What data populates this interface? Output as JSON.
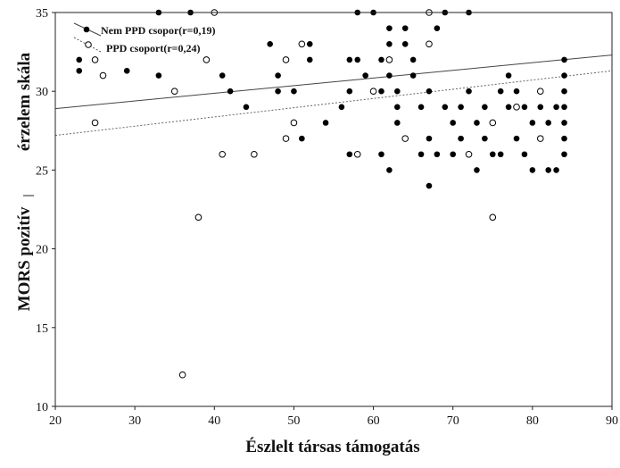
{
  "chart_data": {
    "type": "scatter",
    "xlabel": "Észlelt társas támogatás",
    "ylabel_parts": [
      "MORS pozitív",
      "érzelem skála"
    ],
    "xlim": [
      20,
      90
    ],
    "ylim": [
      10,
      35
    ],
    "x_ticks": [
      "20",
      "30",
      "40",
      "50",
      "60",
      "70",
      "80",
      "90"
    ],
    "y_ticks": [
      "10",
      "15",
      "20",
      "25",
      "30",
      "35"
    ],
    "legend": [
      "Nem PPD  csopor(r=0,19)",
      "PPD csoport(r=0,24)"
    ],
    "series": [
      {
        "name": "Nem PPD  csopor(r=0,19)",
        "marker": "filled",
        "color": "#000000",
        "fit": [
          [
            20,
            28.9
          ],
          [
            90,
            32.3
          ]
        ],
        "points": [
          [
            23,
            31.3
          ],
          [
            23,
            32
          ],
          [
            29,
            31.3
          ],
          [
            33,
            35
          ],
          [
            33,
            31
          ],
          [
            37,
            35
          ],
          [
            41,
            31
          ],
          [
            42,
            30
          ],
          [
            44,
            29
          ],
          [
            47,
            33
          ],
          [
            48,
            31
          ],
          [
            48,
            30
          ],
          [
            50,
            30
          ],
          [
            51,
            27
          ],
          [
            52,
            32
          ],
          [
            52,
            33
          ],
          [
            54,
            28
          ],
          [
            56,
            29
          ],
          [
            57,
            32
          ],
          [
            57,
            30
          ],
          [
            58,
            32
          ],
          [
            59,
            31
          ],
          [
            57,
            26
          ],
          [
            58,
            35
          ],
          [
            60,
            35
          ],
          [
            61,
            26
          ],
          [
            62,
            25
          ],
          [
            61,
            30
          ],
          [
            61,
            32
          ],
          [
            62,
            31
          ],
          [
            63,
            28
          ],
          [
            63,
            29
          ],
          [
            64,
            33
          ],
          [
            64,
            34
          ],
          [
            65,
            31
          ],
          [
            66,
            26
          ],
          [
            67,
            24
          ],
          [
            67,
            30
          ],
          [
            68,
            26
          ],
          [
            68,
            34
          ],
          [
            69,
            35
          ],
          [
            70,
            26
          ],
          [
            71,
            27
          ],
          [
            72,
            35
          ],
          [
            73,
            25
          ],
          [
            74,
            27
          ],
          [
            75,
            26
          ],
          [
            76,
            26
          ],
          [
            77,
            29
          ],
          [
            78,
            27
          ],
          [
            79,
            26
          ],
          [
            80,
            25
          ],
          [
            82,
            25
          ],
          [
            83,
            25
          ],
          [
            84,
            26
          ],
          [
            84,
            27
          ],
          [
            62,
            33
          ],
          [
            62,
            34
          ],
          [
            63,
            30
          ],
          [
            65,
            32
          ],
          [
            66,
            29
          ],
          [
            67,
            27
          ],
          [
            69,
            29
          ],
          [
            70,
            28
          ],
          [
            71,
            29
          ],
          [
            72,
            30
          ],
          [
            73,
            28
          ],
          [
            74,
            29
          ],
          [
            75,
            28
          ],
          [
            76,
            30
          ],
          [
            77,
            31
          ],
          [
            78,
            30
          ],
          [
            79,
            29
          ],
          [
            80,
            28
          ],
          [
            81,
            29
          ],
          [
            82,
            28
          ],
          [
            83,
            29
          ],
          [
            84,
            28
          ],
          [
            84,
            29
          ],
          [
            84,
            30
          ],
          [
            84,
            31
          ],
          [
            84,
            32
          ]
        ]
      },
      {
        "name": "PPD csoport(r=0,24)",
        "marker": "open",
        "color": "#000000",
        "fit": [
          [
            20,
            27.2
          ],
          [
            90,
            31.3
          ]
        ],
        "points": [
          [
            25,
            32
          ],
          [
            25,
            28
          ],
          [
            26,
            31
          ],
          [
            35,
            30
          ],
          [
            36,
            12
          ],
          [
            38,
            22
          ],
          [
            39,
            32
          ],
          [
            40,
            35
          ],
          [
            41,
            26
          ],
          [
            45,
            26
          ],
          [
            49,
            32
          ],
          [
            49,
            27
          ],
          [
            50,
            28
          ],
          [
            51,
            33
          ],
          [
            58,
            26
          ],
          [
            60,
            30
          ],
          [
            62,
            32
          ],
          [
            64,
            27
          ],
          [
            67,
            33
          ],
          [
            67,
            35
          ],
          [
            72,
            26
          ],
          [
            75,
            28
          ],
          [
            75,
            22
          ],
          [
            78,
            29
          ],
          [
            81,
            27
          ],
          [
            81,
            30
          ]
        ]
      }
    ]
  }
}
